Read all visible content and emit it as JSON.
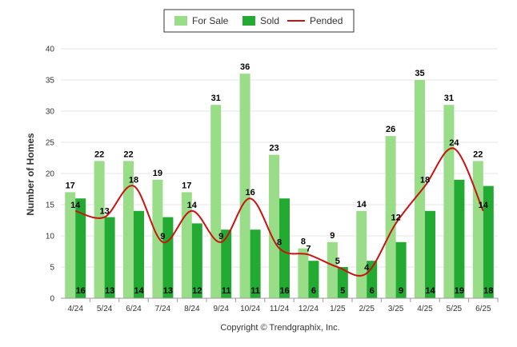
{
  "chart_data": {
    "type": "bar",
    "ylabel": "Number of Homes",
    "ylim": [
      0,
      40
    ],
    "yticks": [
      "0",
      "5",
      "10",
      "15",
      "20",
      "25",
      "30",
      "35",
      "40"
    ],
    "grid": true,
    "legend_position": "top-center",
    "categories": [
      "4/24",
      "5/24",
      "6/24",
      "7/24",
      "8/24",
      "9/24",
      "10/24",
      "11/24",
      "12/24",
      "1/25",
      "2/25",
      "3/25",
      "4/25",
      "5/25",
      "6/25"
    ],
    "series": [
      {
        "name": "For Sale",
        "kind": "bar",
        "color": "#99dd88",
        "values": [
          17,
          22,
          22,
          19,
          17,
          31,
          36,
          23,
          8,
          9,
          14,
          26,
          35,
          31,
          22
        ]
      },
      {
        "name": "Sold",
        "kind": "bar",
        "color": "#22aa33",
        "values": [
          16,
          13,
          14,
          13,
          12,
          11,
          11,
          16,
          6,
          5,
          6,
          9,
          14,
          19,
          18
        ]
      },
      {
        "name": "Pended",
        "kind": "line",
        "color": "#cc1111",
        "values": [
          14,
          13,
          18,
          9,
          14,
          9,
          16,
          8,
          7,
          5,
          4,
          12,
          18,
          24,
          14
        ]
      }
    ]
  },
  "copyright": "Copyright © Trendgraphix, Inc."
}
